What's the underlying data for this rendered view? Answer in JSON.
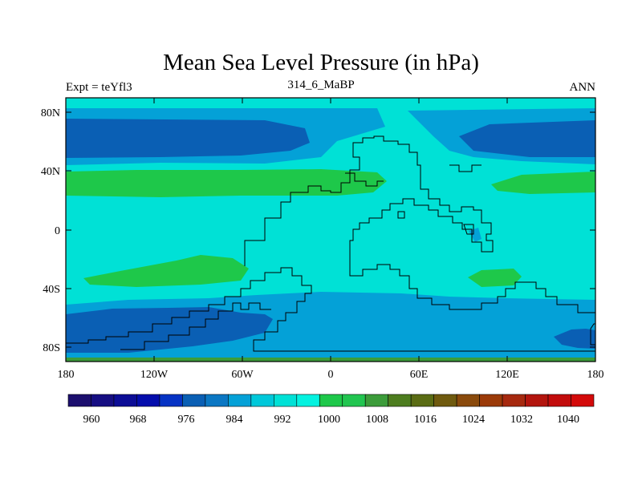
{
  "map": {
    "title": "Mean Sea Level Pressure (in hPa)",
    "left_label": "Expt = teYfl3",
    "center_label": "314_6_MaBP",
    "right_label": "ANN",
    "lon_ticks": [
      "180",
      "120W",
      "60W",
      "0",
      "60E",
      "120E",
      "180"
    ],
    "lat_ticks": [
      "80N",
      "40N",
      "0",
      "40S",
      "80S"
    ],
    "colors": {
      "c984": "#0a5fb4",
      "c992": "#04a1d7",
      "c1000": "#00e1d6",
      "c1008": "#1ec84a",
      "c1016": "#3c9c3a",
      "frame": "#000000"
    }
  },
  "colorbar": {
    "labels": [
      "960",
      "968",
      "976",
      "984",
      "992",
      "1000",
      "1008",
      "1016",
      "1024",
      "1032",
      "1040"
    ],
    "colors": [
      "#1c0f6e",
      "#160e82",
      "#0c0d96",
      "#040dac",
      "#0633c4",
      "#0a5fb4",
      "#0b77c3",
      "#04a1d7",
      "#00c8da",
      "#00e1d6",
      "#04f2e0",
      "#1ec84a",
      "#22c550",
      "#3c9c3a",
      "#4d7d1f",
      "#5a6c14",
      "#6f5a0f",
      "#8a4a0c",
      "#9b3a08",
      "#a6290f",
      "#b3150e",
      "#c20c0c",
      "#d30a0a"
    ]
  }
}
